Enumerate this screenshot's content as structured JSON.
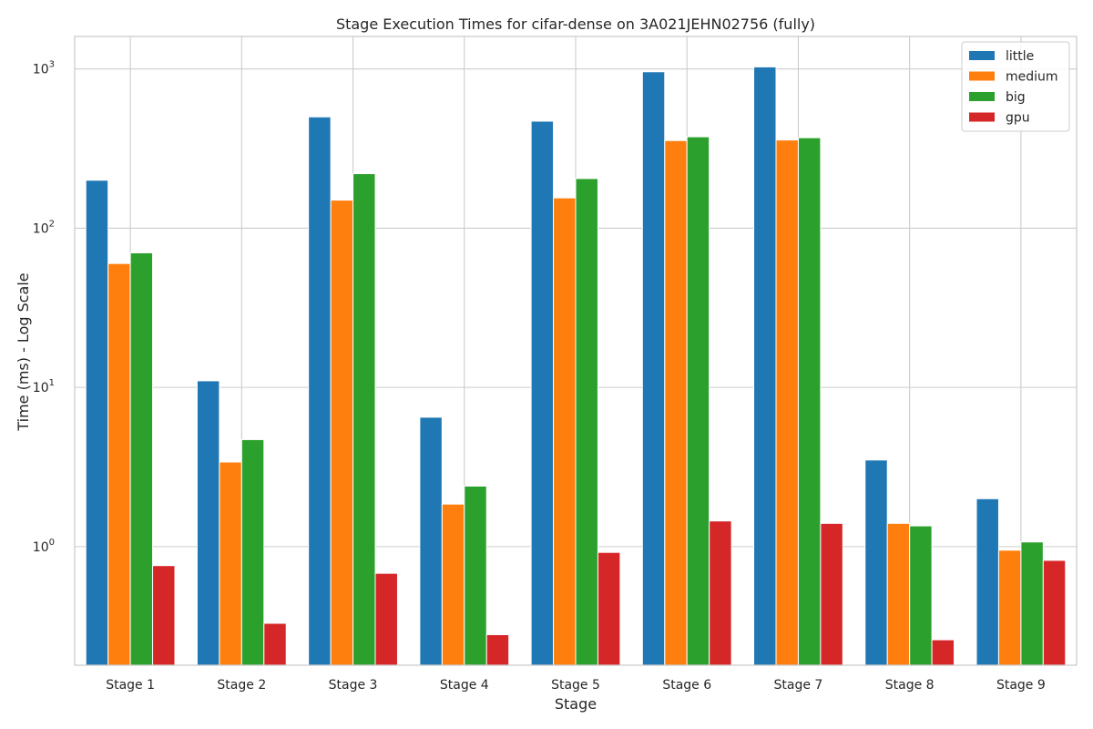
{
  "chart_data": {
    "type": "bar",
    "title": "Stage Execution Times for cifar-dense on 3A021JEHN02756 (fully)",
    "xlabel": "Stage",
    "ylabel": "Time (ms) - Log Scale",
    "yscale": "log",
    "ylim": [
      0.18,
      1600
    ],
    "ytick_values": [
      1,
      10,
      100,
      1000
    ],
    "ytick_bases": [
      "10",
      "10",
      "10",
      "10"
    ],
    "ytick_exponents": [
      "0",
      "1",
      "2",
      "3"
    ],
    "grid": true,
    "legend_position": "top-right",
    "categories": [
      "Stage 1",
      "Stage 2",
      "Stage 3",
      "Stage 4",
      "Stage 5",
      "Stage 6",
      "Stage 7",
      "Stage 8",
      "Stage 9"
    ],
    "series": [
      {
        "name": "little",
        "color": "#1f77b4",
        "values": [
          200,
          11,
          500,
          6.5,
          470,
          960,
          1030,
          3.5,
          2.0
        ]
      },
      {
        "name": "medium",
        "color": "#ff7f0e",
        "values": [
          60,
          3.4,
          150,
          1.85,
          155,
          355,
          358,
          1.4,
          0.95
        ]
      },
      {
        "name": "big",
        "color": "#2ca02c",
        "values": [
          70,
          4.7,
          220,
          2.4,
          205,
          375,
          370,
          1.35,
          1.07
        ]
      },
      {
        "name": "gpu",
        "color": "#d62728",
        "values": [
          0.76,
          0.33,
          0.68,
          0.28,
          0.92,
          1.45,
          1.4,
          0.26,
          0.82
        ]
      }
    ]
  }
}
